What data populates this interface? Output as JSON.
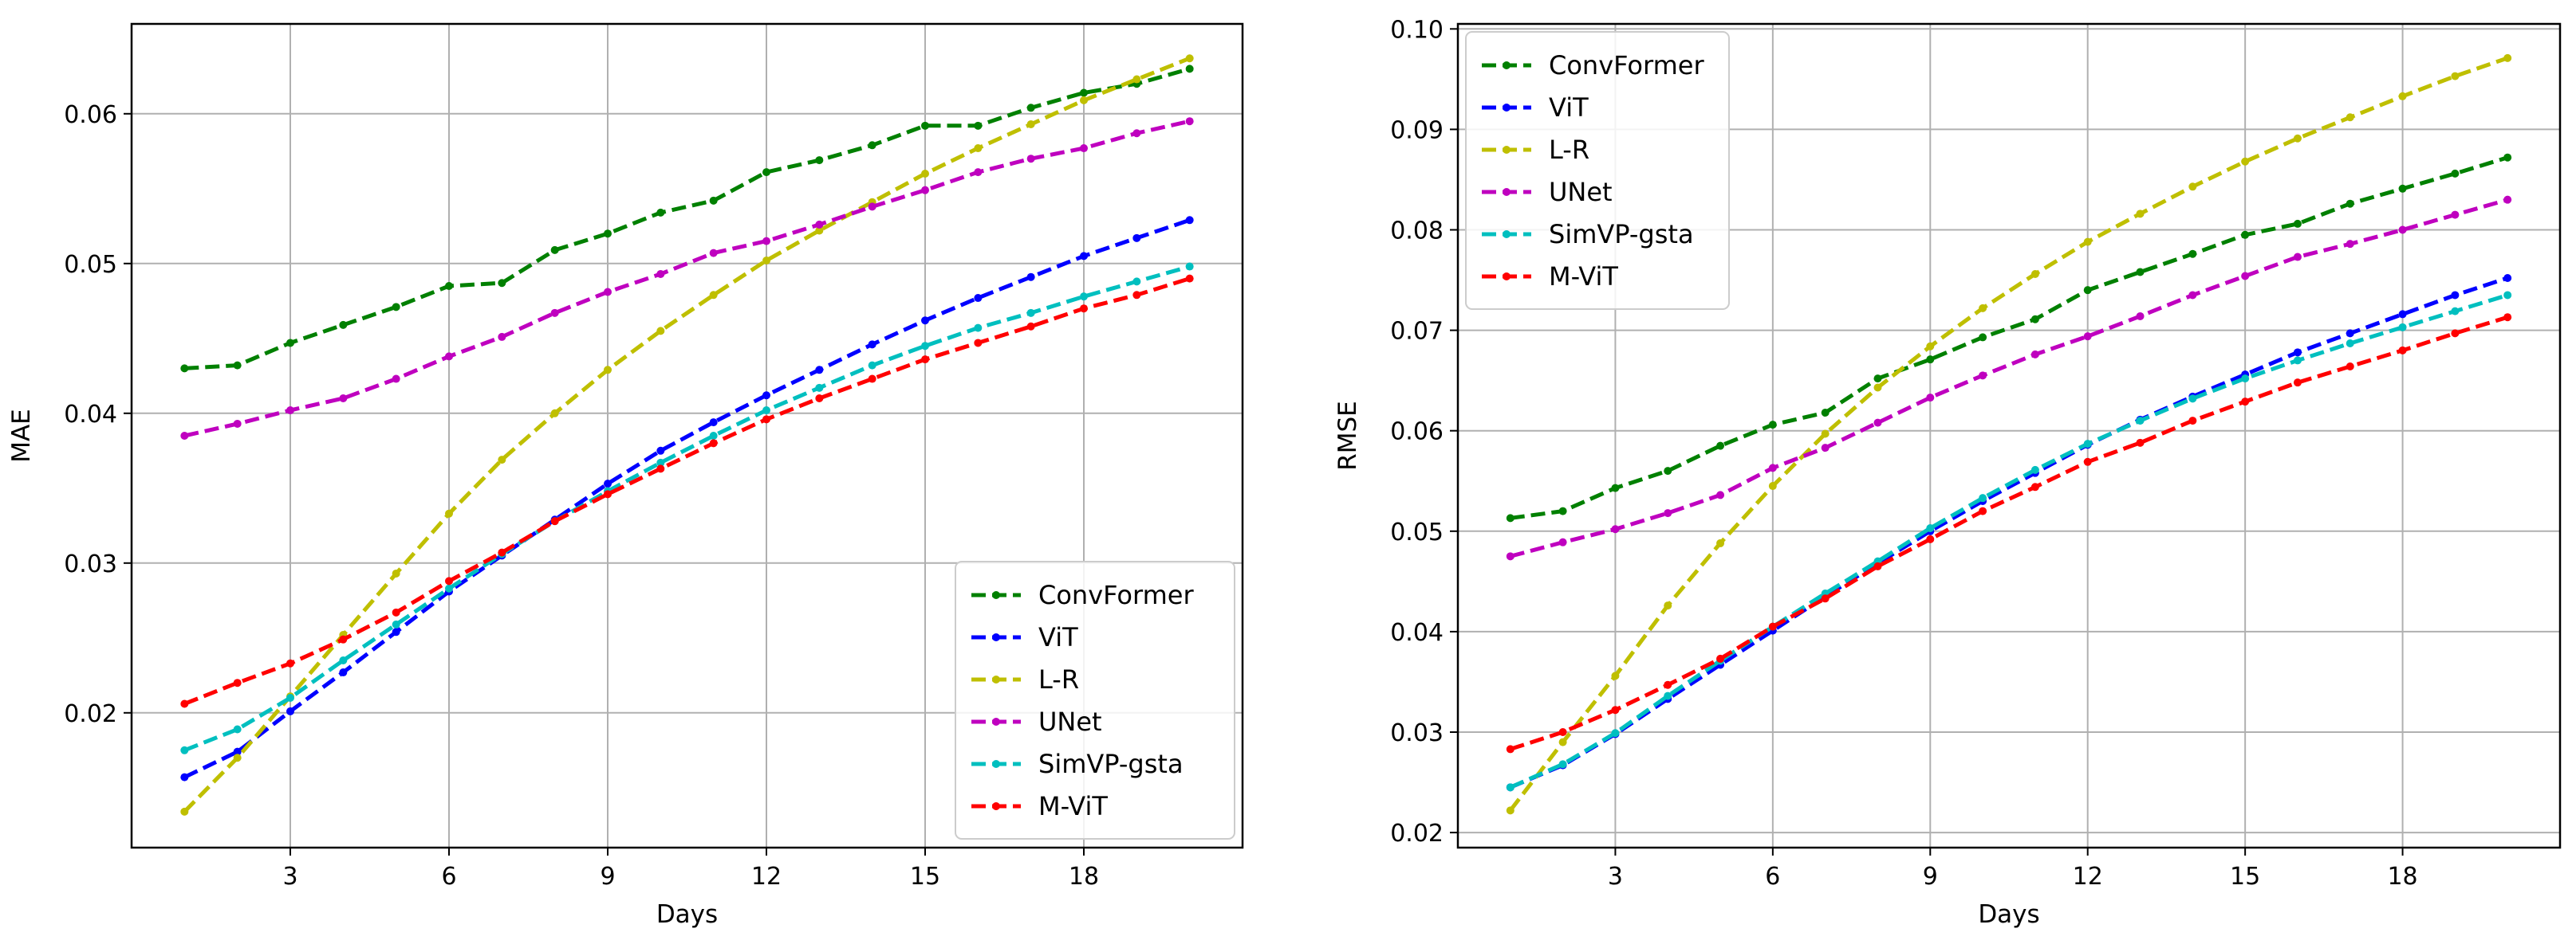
{
  "chart_data": [
    {
      "type": "line",
      "title": "",
      "xlabel": "Days",
      "ylabel": "MAE",
      "xlim": [
        0.0,
        21.0
      ],
      "ylim": [
        0.011,
        0.066
      ],
      "xticks": [
        3,
        6,
        9,
        12,
        15,
        18
      ],
      "xtick_labels": [
        "3",
        "6",
        "9",
        "12",
        "15",
        "18"
      ],
      "yticks": [
        0.02,
        0.03,
        0.04,
        0.05,
        0.06
      ],
      "ytick_labels": [
        "0.02",
        "0.03",
        "0.04",
        "0.05",
        "0.06"
      ],
      "grid": true,
      "legend_position": "lower-right",
      "x": [
        1,
        2,
        3,
        4,
        5,
        6,
        7,
        8,
        9,
        10,
        11,
        12,
        13,
        14,
        15,
        16,
        17,
        18,
        19,
        20
      ],
      "series": [
        {
          "name": "ConvFormer",
          "color": "#008000",
          "values": [
            0.043,
            0.0432,
            0.0447,
            0.0459,
            0.0471,
            0.0485,
            0.0487,
            0.0509,
            0.052,
            0.0534,
            0.0542,
            0.0561,
            0.0569,
            0.0579,
            0.0592,
            0.0592,
            0.0604,
            0.0614,
            0.062,
            0.063
          ]
        },
        {
          "name": "ViT",
          "color": "#0000ff",
          "values": [
            0.0157,
            0.0174,
            0.0201,
            0.0227,
            0.0254,
            0.0281,
            0.0305,
            0.0329,
            0.0353,
            0.0375,
            0.0394,
            0.0412,
            0.0429,
            0.0446,
            0.0462,
            0.0477,
            0.0491,
            0.0505,
            0.0517,
            0.0529
          ]
        },
        {
          "name": "L-R",
          "color": "#bfbf00",
          "values": [
            0.0134,
            0.017,
            0.0211,
            0.0252,
            0.0293,
            0.0333,
            0.0369,
            0.04,
            0.0429,
            0.0455,
            0.0479,
            0.0502,
            0.0522,
            0.0541,
            0.056,
            0.0577,
            0.0593,
            0.0609,
            0.0623,
            0.0637
          ]
        },
        {
          "name": "UNet",
          "color": "#bf00bf",
          "values": [
            0.0385,
            0.0393,
            0.0402,
            0.041,
            0.0423,
            0.0438,
            0.0451,
            0.0467,
            0.0481,
            0.0493,
            0.0507,
            0.0515,
            0.0526,
            0.0538,
            0.0549,
            0.0561,
            0.057,
            0.0577,
            0.0587,
            0.0595
          ]
        },
        {
          "name": "SimVP-gsta",
          "color": "#00bfbf",
          "values": [
            0.0175,
            0.0189,
            0.021,
            0.0235,
            0.0259,
            0.0283,
            0.0306,
            0.0328,
            0.0348,
            0.0367,
            0.0385,
            0.0402,
            0.0417,
            0.0432,
            0.0445,
            0.0457,
            0.0467,
            0.0478,
            0.0488,
            0.0498
          ]
        },
        {
          "name": "M-ViT",
          "color": "#ff0000",
          "values": [
            0.0206,
            0.022,
            0.0233,
            0.0249,
            0.0267,
            0.0288,
            0.0307,
            0.0328,
            0.0346,
            0.0363,
            0.038,
            0.0396,
            0.041,
            0.0423,
            0.0436,
            0.0447,
            0.0458,
            0.047,
            0.0479,
            0.049
          ]
        }
      ]
    },
    {
      "type": "line",
      "title": "",
      "xlabel": "Days",
      "ylabel": "RMSE",
      "xlim": [
        0.0,
        21.0
      ],
      "ylim": [
        0.0185,
        0.1005
      ],
      "xticks": [
        3,
        6,
        9,
        12,
        15,
        18
      ],
      "xtick_labels": [
        "3",
        "6",
        "9",
        "12",
        "15",
        "18"
      ],
      "yticks": [
        0.02,
        0.03,
        0.04,
        0.05,
        0.06,
        0.07,
        0.08,
        0.09,
        0.1
      ],
      "ytick_labels": [
        "0.02",
        "0.03",
        "0.04",
        "0.05",
        "0.06",
        "0.07",
        "0.08",
        "0.09",
        "0.10"
      ],
      "grid": true,
      "legend_position": "upper-left",
      "x": [
        1,
        2,
        3,
        4,
        5,
        6,
        7,
        8,
        9,
        10,
        11,
        12,
        13,
        14,
        15,
        16,
        17,
        18,
        19,
        20
      ],
      "series": [
        {
          "name": "ConvFormer",
          "color": "#008000",
          "values": [
            0.0513,
            0.052,
            0.0543,
            0.056,
            0.0585,
            0.0606,
            0.0618,
            0.0652,
            0.0671,
            0.0693,
            0.0711,
            0.074,
            0.0758,
            0.0776,
            0.0795,
            0.0806,
            0.0826,
            0.0841,
            0.0856,
            0.0872
          ]
        },
        {
          "name": "ViT",
          "color": "#0000ff",
          "values": [
            0.0245,
            0.0267,
            0.0298,
            0.0333,
            0.0367,
            0.0401,
            0.0435,
            0.0468,
            0.05,
            0.053,
            0.0558,
            0.0586,
            0.0611,
            0.0634,
            0.0656,
            0.0678,
            0.0697,
            0.0716,
            0.0735,
            0.0752
          ]
        },
        {
          "name": "L-R",
          "color": "#bfbf00",
          "values": [
            0.0222,
            0.029,
            0.0356,
            0.0426,
            0.0488,
            0.0545,
            0.0597,
            0.0643,
            0.0684,
            0.0722,
            0.0756,
            0.0788,
            0.0816,
            0.0843,
            0.0868,
            0.0891,
            0.0912,
            0.0933,
            0.0953,
            0.0971
          ]
        },
        {
          "name": "UNet",
          "color": "#bf00bf",
          "values": [
            0.0475,
            0.0489,
            0.0502,
            0.0518,
            0.0536,
            0.0563,
            0.0583,
            0.0608,
            0.0633,
            0.0655,
            0.0676,
            0.0694,
            0.0714,
            0.0735,
            0.0754,
            0.0773,
            0.0786,
            0.08,
            0.0815,
            0.083
          ]
        },
        {
          "name": "SimVP-gsta",
          "color": "#00bfbf",
          "values": [
            0.0245,
            0.0268,
            0.0299,
            0.0336,
            0.0371,
            0.0405,
            0.0438,
            0.047,
            0.0503,
            0.0533,
            0.0561,
            0.0587,
            0.061,
            0.0632,
            0.0652,
            0.067,
            0.0687,
            0.0703,
            0.0719,
            0.0735
          ]
        },
        {
          "name": "M-ViT",
          "color": "#ff0000",
          "values": [
            0.0283,
            0.03,
            0.0322,
            0.0347,
            0.0373,
            0.0405,
            0.0433,
            0.0465,
            0.0492,
            0.052,
            0.0544,
            0.0569,
            0.0588,
            0.061,
            0.0629,
            0.0648,
            0.0664,
            0.068,
            0.0697,
            0.0713
          ]
        }
      ]
    }
  ]
}
